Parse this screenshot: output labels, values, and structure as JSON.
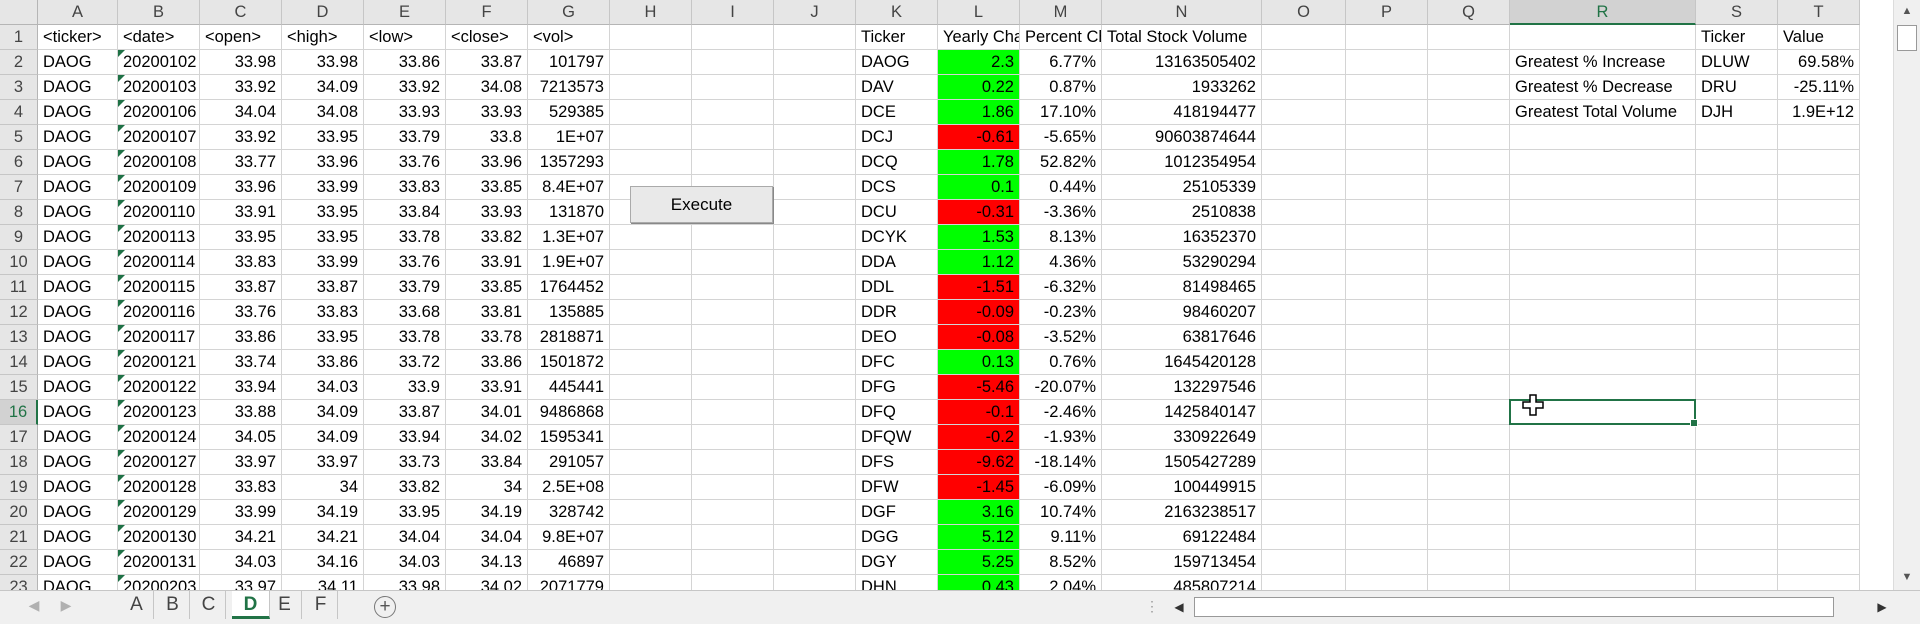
{
  "columns": [
    "A",
    "B",
    "C",
    "D",
    "E",
    "F",
    "G",
    "H",
    "I",
    "J",
    "K",
    "L",
    "M",
    "N",
    "O",
    "P",
    "Q",
    "R",
    "S",
    "T"
  ],
  "selected_column": "R",
  "selected_row": 16,
  "rows": [
    {
      "n": "1",
      "A": "<ticker>",
      "B": "<date>",
      "C": "<open>",
      "D": "<high>",
      "E": "<low>",
      "F": "<close>",
      "G": "<vol>",
      "K": "Ticker",
      "L": "Yearly Change",
      "M": "Percent Change",
      "N": "Total Stock Volume",
      "S": "Ticker",
      "T": "Value"
    },
    {
      "n": "2",
      "A": "DAOG",
      "B": "20200102",
      "C": "33.98",
      "D": "33.98",
      "E": "33.86",
      "F": "33.87",
      "G": "101797",
      "K": "DAOG",
      "L": "2.3",
      "M": "6.77%",
      "N": "13163505402",
      "R": "Greatest % Increase",
      "S": "DLUW",
      "T": "69.58%"
    },
    {
      "n": "3",
      "A": "DAOG",
      "B": "20200103",
      "C": "33.92",
      "D": "34.09",
      "E": "33.92",
      "F": "34.08",
      "G": "7213573",
      "K": "DAV",
      "L": "0.22",
      "M": "0.87%",
      "N": "1933262",
      "R": "Greatest % Decrease",
      "S": "DRU",
      "T": "-25.11%"
    },
    {
      "n": "4",
      "A": "DAOG",
      "B": "20200106",
      "C": "34.04",
      "D": "34.08",
      "E": "33.93",
      "F": "33.93",
      "G": "529385",
      "K": "DCE",
      "L": "1.86",
      "M": "17.10%",
      "N": "418194477",
      "R": "Greatest Total Volume",
      "S": "DJH",
      "T": "1.9E+12"
    },
    {
      "n": "5",
      "A": "DAOG",
      "B": "20200107",
      "C": "33.92",
      "D": "33.95",
      "E": "33.79",
      "F": "33.8",
      "G": "1E+07",
      "K": "DCJ",
      "L": "-0.61",
      "M": "-5.65%",
      "N": "90603874644"
    },
    {
      "n": "6",
      "A": "DAOG",
      "B": "20200108",
      "C": "33.77",
      "D": "33.96",
      "E": "33.76",
      "F": "33.96",
      "G": "1357293",
      "K": "DCQ",
      "L": "1.78",
      "M": "52.82%",
      "N": "1012354954"
    },
    {
      "n": "7",
      "A": "DAOG",
      "B": "20200109",
      "C": "33.96",
      "D": "33.99",
      "E": "33.83",
      "F": "33.85",
      "G": "8.4E+07",
      "K": "DCS",
      "L": "0.1",
      "M": "0.44%",
      "N": "25105339"
    },
    {
      "n": "8",
      "A": "DAOG",
      "B": "20200110",
      "C": "33.91",
      "D": "33.95",
      "E": "33.84",
      "F": "33.93",
      "G": "131870",
      "K": "DCU",
      "L": "-0.31",
      "M": "-3.36%",
      "N": "2510838"
    },
    {
      "n": "9",
      "A": "DAOG",
      "B": "20200113",
      "C": "33.95",
      "D": "33.95",
      "E": "33.78",
      "F": "33.82",
      "G": "1.3E+07",
      "K": "DCYK",
      "L": "1.53",
      "M": "8.13%",
      "N": "16352370"
    },
    {
      "n": "10",
      "A": "DAOG",
      "B": "20200114",
      "C": "33.83",
      "D": "33.99",
      "E": "33.76",
      "F": "33.91",
      "G": "1.9E+07",
      "K": "DDA",
      "L": "1.12",
      "M": "4.36%",
      "N": "53290294"
    },
    {
      "n": "11",
      "A": "DAOG",
      "B": "20200115",
      "C": "33.87",
      "D": "33.87",
      "E": "33.79",
      "F": "33.85",
      "G": "1764452",
      "K": "DDL",
      "L": "-1.51",
      "M": "-6.32%",
      "N": "81498465"
    },
    {
      "n": "12",
      "A": "DAOG",
      "B": "20200116",
      "C": "33.76",
      "D": "33.83",
      "E": "33.68",
      "F": "33.81",
      "G": "135885",
      "K": "DDR",
      "L": "-0.09",
      "M": "-0.23%",
      "N": "98460207"
    },
    {
      "n": "13",
      "A": "DAOG",
      "B": "20200117",
      "C": "33.86",
      "D": "33.95",
      "E": "33.78",
      "F": "33.78",
      "G": "2818871",
      "K": "DEO",
      "L": "-0.08",
      "M": "-3.52%",
      "N": "63817646"
    },
    {
      "n": "14",
      "A": "DAOG",
      "B": "20200121",
      "C": "33.74",
      "D": "33.86",
      "E": "33.72",
      "F": "33.86",
      "G": "1501872",
      "K": "DFC",
      "L": "0.13",
      "M": "0.76%",
      "N": "1645420128"
    },
    {
      "n": "15",
      "A": "DAOG",
      "B": "20200122",
      "C": "33.94",
      "D": "34.03",
      "E": "33.9",
      "F": "33.91",
      "G": "445441",
      "K": "DFG",
      "L": "-5.46",
      "M": "-20.07%",
      "N": "132297546"
    },
    {
      "n": "16",
      "A": "DAOG",
      "B": "20200123",
      "C": "33.88",
      "D": "34.09",
      "E": "33.87",
      "F": "34.01",
      "G": "9486868",
      "K": "DFQ",
      "L": "-0.1",
      "M": "-2.46%",
      "N": "1425840147"
    },
    {
      "n": "17",
      "A": "DAOG",
      "B": "20200124",
      "C": "34.05",
      "D": "34.09",
      "E": "33.94",
      "F": "34.02",
      "G": "1595341",
      "K": "DFQW",
      "L": "-0.2",
      "M": "-1.93%",
      "N": "330922649"
    },
    {
      "n": "18",
      "A": "DAOG",
      "B": "20200127",
      "C": "33.97",
      "D": "33.97",
      "E": "33.73",
      "F": "33.84",
      "G": "291057",
      "K": "DFS",
      "L": "-9.62",
      "M": "-18.14%",
      "N": "1505427289"
    },
    {
      "n": "19",
      "A": "DAOG",
      "B": "20200128",
      "C": "33.83",
      "D": "34",
      "E": "33.82",
      "F": "34",
      "G": "2.5E+08",
      "K": "DFW",
      "L": "-1.45",
      "M": "-6.09%",
      "N": "100449915"
    },
    {
      "n": "20",
      "A": "DAOG",
      "B": "20200129",
      "C": "33.99",
      "D": "34.19",
      "E": "33.95",
      "F": "34.19",
      "G": "328742",
      "K": "DGF",
      "L": "3.16",
      "M": "10.74%",
      "N": "2163238517"
    },
    {
      "n": "21",
      "A": "DAOG",
      "B": "20200130",
      "C": "34.21",
      "D": "34.21",
      "E": "34.04",
      "F": "34.04",
      "G": "9.8E+07",
      "K": "DGG",
      "L": "5.12",
      "M": "9.11%",
      "N": "69122484"
    },
    {
      "n": "22",
      "A": "DAOG",
      "B": "20200131",
      "C": "34.03",
      "D": "34.16",
      "E": "34.03",
      "F": "34.13",
      "G": "46897",
      "K": "DGY",
      "L": "5.25",
      "M": "8.52%",
      "N": "159713454"
    },
    {
      "n": "23",
      "A": "DAOG",
      "B": "20200203",
      "C": "33.97",
      "D": "34.11",
      "E": "33.98",
      "F": "34.02",
      "G": "2071779",
      "K": "DHN",
      "L": "0.43",
      "M": "2.04%",
      "N": "485807214"
    }
  ],
  "execute_label": "Execute",
  "colors": {
    "positive": "#00ff00",
    "negative": "#ff0000",
    "accent": "#217346"
  },
  "sheet_tabs": [
    "A",
    "B",
    "C",
    "D",
    "E",
    "F"
  ],
  "active_tab": "D",
  "add_sheet_symbol": "+",
  "icons": {
    "scroll_up": "▲",
    "scroll_down": "▼",
    "scroll_left": "◀",
    "scroll_right": "▶",
    "tab_prev": "◀",
    "tab_next": "▶",
    "split": "⋮"
  }
}
